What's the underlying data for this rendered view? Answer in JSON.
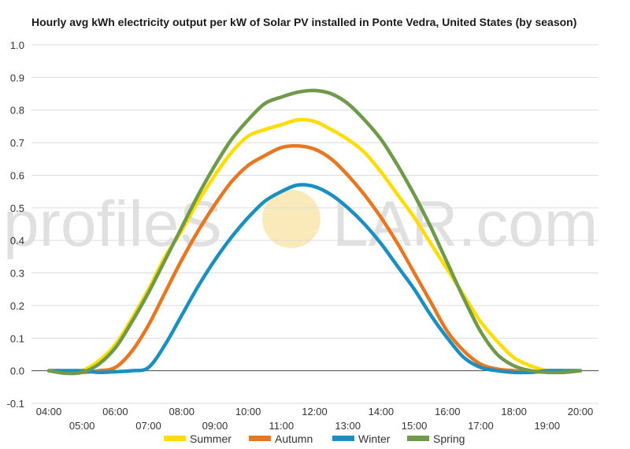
{
  "chart_data": {
    "type": "line",
    "title": "Hourly avg kWh electricity output per kW of Solar PV installed in Ponte Vedra, United States (by season)",
    "x_top_ticks": [
      "04:00",
      "06:00",
      "08:00",
      "10:00",
      "12:00",
      "14:00",
      "16:00",
      "18:00",
      "20:00"
    ],
    "x_bottom_ticks": [
      "05:00",
      "07:00",
      "09:00",
      "11:00",
      "13:00",
      "15:00",
      "17:00",
      "19:00"
    ],
    "y_ticks": [
      "1.0",
      "0.9",
      "0.8",
      "0.7",
      "0.6",
      "0.5",
      "0.4",
      "0.3",
      "0.2",
      "0.1",
      "0.0",
      "-0.1"
    ],
    "ylim": [
      -0.1,
      1.0
    ],
    "xlim": [
      4,
      20
    ],
    "grid": true,
    "legend_position": "bottom",
    "x": [
      4,
      4.5,
      5,
      5.5,
      6,
      6.5,
      7,
      7.5,
      8,
      8.5,
      9,
      9.5,
      10,
      10.5,
      11,
      11.5,
      12,
      12.5,
      13,
      13.5,
      14,
      14.5,
      15,
      15.5,
      16,
      16.5,
      17,
      17.5,
      18,
      18.5,
      19,
      19.5,
      20
    ],
    "series": [
      {
        "name": "Summer",
        "color": "#ffdd00",
        "values": [
          0,
          -0.005,
          0,
          0.03,
          0.08,
          0.16,
          0.25,
          0.35,
          0.43,
          0.52,
          0.6,
          0.67,
          0.72,
          0.74,
          0.755,
          0.77,
          0.765,
          0.74,
          0.71,
          0.67,
          0.61,
          0.54,
          0.47,
          0.39,
          0.31,
          0.23,
          0.15,
          0.09,
          0.04,
          0.015,
          0,
          0,
          0
        ]
      },
      {
        "name": "Autumn",
        "color": "#e87722",
        "values": [
          0,
          0,
          -0.005,
          0,
          0.01,
          0.06,
          0.14,
          0.24,
          0.34,
          0.43,
          0.51,
          0.58,
          0.63,
          0.66,
          0.685,
          0.69,
          0.68,
          0.65,
          0.6,
          0.54,
          0.47,
          0.39,
          0.3,
          0.21,
          0.12,
          0.06,
          0.02,
          0.005,
          0,
          -0.005,
          0,
          0,
          0
        ]
      },
      {
        "name": "Winter",
        "color": "#1a8fc0",
        "values": [
          0,
          0,
          0,
          -0.005,
          -0.003,
          0,
          0.01,
          0.08,
          0.17,
          0.26,
          0.34,
          0.41,
          0.47,
          0.52,
          0.55,
          0.57,
          0.565,
          0.54,
          0.5,
          0.45,
          0.39,
          0.32,
          0.25,
          0.17,
          0.1,
          0.04,
          0.01,
          0,
          -0.005,
          -0.005,
          0,
          0,
          0
        ]
      },
      {
        "name": "Spring",
        "color": "#6e9a4a",
        "values": [
          0,
          -0.008,
          -0.005,
          0.02,
          0.07,
          0.15,
          0.24,
          0.34,
          0.44,
          0.54,
          0.63,
          0.71,
          0.77,
          0.82,
          0.84,
          0.855,
          0.86,
          0.85,
          0.82,
          0.77,
          0.71,
          0.63,
          0.54,
          0.44,
          0.33,
          0.22,
          0.12,
          0.05,
          0.015,
          0,
          -0.005,
          -0.005,
          0
        ]
      }
    ]
  },
  "watermark": {
    "left": "profileS",
    "middle": "O",
    "right": "LAR.com",
    "sun_color": "#f9e4a8"
  }
}
